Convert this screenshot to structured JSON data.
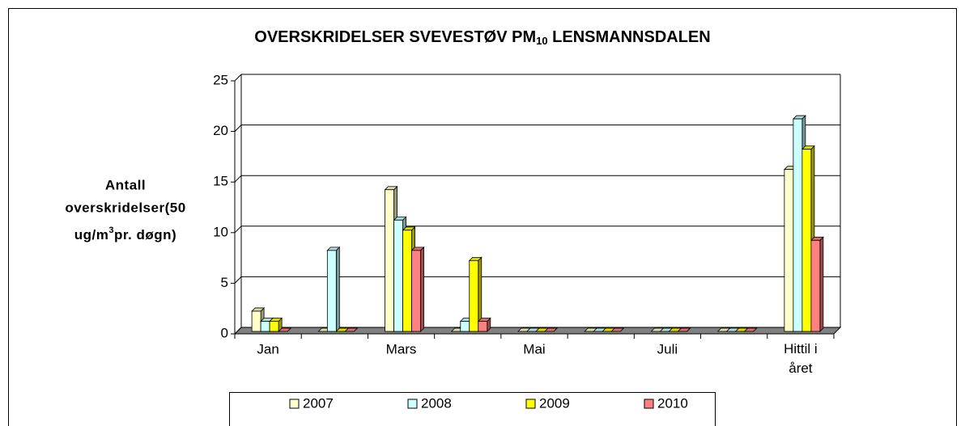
{
  "chart_data": {
    "type": "bar3d",
    "title": [
      "OVERSKRIDELSER SVEVESTØV PM",
      "10",
      " LENSMANNSDALEN"
    ],
    "y_label": [
      "Antall",
      "overskridelser(50",
      "ug/m",
      "3",
      "pr. døgn)"
    ],
    "categories": [
      "Jan",
      null,
      "Mars",
      null,
      "Mai",
      null,
      "Juli",
      null,
      "Hittil i året"
    ],
    "series": [
      {
        "name": "2007",
        "color": "#ffffcc",
        "values": [
          2,
          0,
          14,
          0,
          0,
          0,
          0,
          0,
          16
        ]
      },
      {
        "name": "2008",
        "color": "#ccffff",
        "values": [
          1,
          8,
          11,
          1,
          0,
          0,
          0,
          0,
          21
        ]
      },
      {
        "name": "2009",
        "color": "#ffff00",
        "values": [
          1,
          0,
          10,
          7,
          0,
          0,
          0,
          0,
          18
        ]
      },
      {
        "name": "2010",
        "color": "#ff8080",
        "values": [
          0,
          0,
          8,
          1,
          0,
          0,
          0,
          0,
          9
        ]
      }
    ],
    "ylim": [
      0,
      25
    ],
    "yticks": [
      0,
      5,
      10,
      15,
      20,
      25
    ],
    "grid": true,
    "legend": "bottom"
  }
}
